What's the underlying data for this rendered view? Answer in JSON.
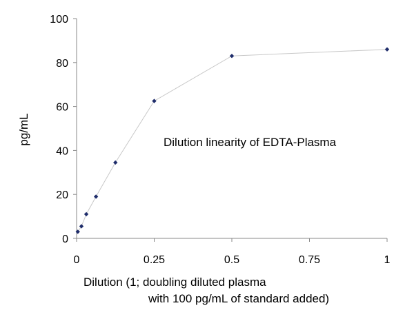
{
  "chart_data": {
    "type": "scatter",
    "title": "",
    "annotation": "Dilution linearity of EDTA-Plasma",
    "ylabel": "pg/mL",
    "xlabel_lines": [
      "Dilution (1; doubling diluted plasma",
      "with 100 pg/mL of standard added)"
    ],
    "xlim": [
      0,
      1
    ],
    "ylim": [
      0,
      100
    ],
    "x_ticks": [
      0,
      0.25,
      0.5,
      0.75,
      1
    ],
    "x_tick_labels": [
      "0",
      "0.25",
      "0.5",
      "0.75",
      "1"
    ],
    "y_ticks": [
      0,
      20,
      40,
      60,
      80,
      100
    ],
    "y_tick_labels": [
      "0",
      "20",
      "40",
      "60",
      "80",
      "100"
    ],
    "grid": false,
    "legend": "none",
    "series": [
      {
        "x": [
          0.0039,
          0.0156,
          0.03125,
          0.0625,
          0.125,
          0.25,
          0.5,
          1
        ],
        "y": [
          3,
          5.5,
          11,
          19,
          34.5,
          62.5,
          83,
          86
        ],
        "marker_color": "#1f2d6b",
        "line_color": "#c8c8c8"
      }
    ]
  }
}
